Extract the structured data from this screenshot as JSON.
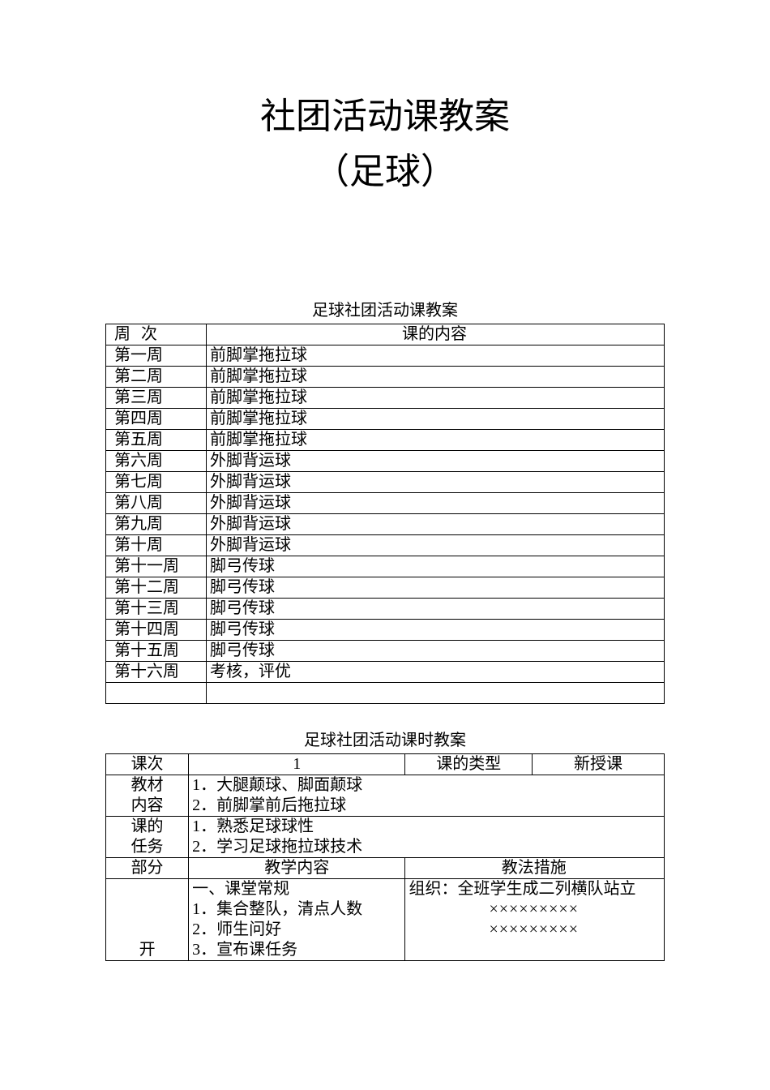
{
  "title_line1": "社团活动课教案",
  "title_line2": "（足球）",
  "schedule_caption": "足球社团活动课教案",
  "schedule_header_week": "周 次",
  "schedule_header_content": "课的内容",
  "schedule_rows": [
    {
      "week": "第一周",
      "content": "前脚掌拖拉球"
    },
    {
      "week": "第二周",
      "content": "前脚掌拖拉球"
    },
    {
      "week": "第三周",
      "content": "前脚掌拖拉球"
    },
    {
      "week": "第四周",
      "content": "前脚掌拖拉球"
    },
    {
      "week": "第五周",
      "content": "前脚掌拖拉球"
    },
    {
      "week": "第六周",
      "content": "外脚背运球"
    },
    {
      "week": "第七周",
      "content": "外脚背运球"
    },
    {
      "week": "第八周",
      "content": "外脚背运球"
    },
    {
      "week": "第九周",
      "content": "外脚背运球"
    },
    {
      "week": "第十周",
      "content": "外脚背运球"
    },
    {
      "week": "第十一周",
      "content": "脚弓传球"
    },
    {
      "week": "第十二周",
      "content": "脚弓传球"
    },
    {
      "week": "第十三周",
      "content": "脚弓传球"
    },
    {
      "week": "第十四周",
      "content": "脚弓传球"
    },
    {
      "week": "第十五周",
      "content": "脚弓传球"
    },
    {
      "week": "第十六周",
      "content": "考核，评优"
    }
  ],
  "lesson_caption": "足球社团活动课时教案",
  "lesson": {
    "session_label": "课次",
    "session_value": "1",
    "type_label": "课的类型",
    "type_value": "新授课",
    "material_label_l1": "教材",
    "material_label_l2": "内容",
    "material_line1": "1．大腿颠球、脚面颠球",
    "material_line2": "2．前脚掌前后拖拉球",
    "task_label_l1": "课的",
    "task_label_l2": "任务",
    "task_line1": "1．熟悉足球球性",
    "task_line2": "2．学习足球拖拉球技术",
    "part_label": "部分",
    "teach_content_label": "教学内容",
    "method_label": "教法措施",
    "open_part_label": "开",
    "open_content_l1": "一、课堂常规",
    "open_content_l2": "1．集合整队，清点人数",
    "open_content_l3": "2．师生问好",
    "open_content_l4": "3．宣布课任务",
    "method_line1": "组织：全班学生成二列横队站立",
    "method_pattern1": "×××××××××",
    "method_pattern2": "×××××××××"
  },
  "colors": {
    "page_bg": "#ffffff",
    "text": "#000000",
    "border": "#000000"
  }
}
